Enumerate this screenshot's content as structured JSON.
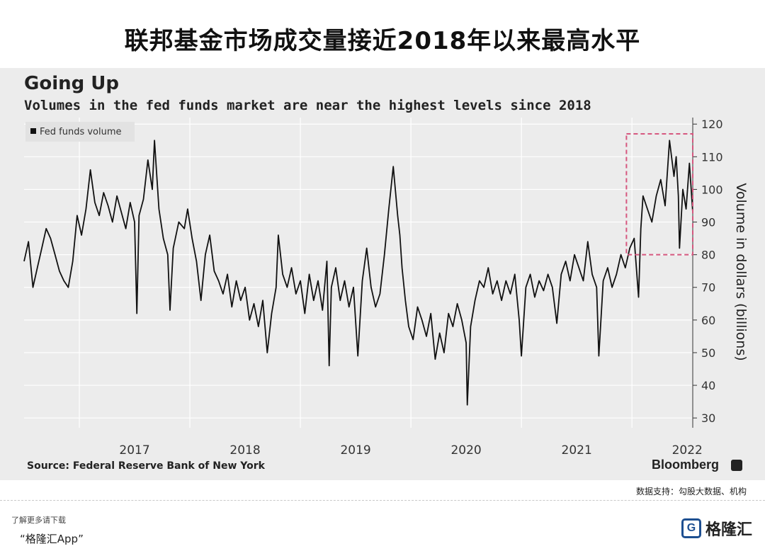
{
  "page": {
    "title": "联邦基金市场成交量接近2018年以来最高水平"
  },
  "chart_meta": {
    "source": "Source: Federal Reserve Bank of New York",
    "brand": "Bloomberg",
    "credit": "数据支持：勾股大数据、机构"
  },
  "footer": {
    "line1": "了解更多请下载",
    "line2": "“格隆汇App”",
    "logo_text": "格隆汇",
    "logo_icon": "G"
  },
  "colors": {
    "line": "#111111",
    "grid": "#ffffff",
    "highlight_box": "#d6577f",
    "panel": "#ececec"
  },
  "chart_data": {
    "type": "line",
    "title": "Going Up",
    "subtitle": "Volumes in the fed funds market are near the highest levels since 2018",
    "xlabel": "",
    "ylabel": "Volume in dollars (billions)",
    "ylim": [
      27,
      122
    ],
    "xlim": [
      2016.5,
      2022.55
    ],
    "y_ticks": [
      30,
      40,
      50,
      60,
      70,
      80,
      90,
      100,
      110,
      120
    ],
    "x_ticks": [
      2017,
      2018,
      2019,
      2020,
      2021,
      2022
    ],
    "x_tick_labels": [
      "2017",
      "2018",
      "2019",
      "2020",
      "2021",
      "2022"
    ],
    "grid": true,
    "legend": {
      "position": "top-left",
      "entries": [
        "Fed funds volume"
      ]
    },
    "highlight_region": {
      "x": [
        2021.95,
        2022.55
      ],
      "y": [
        80,
        117
      ]
    },
    "series": [
      {
        "name": "Fed funds volume",
        "points": [
          [
            2016.5,
            78
          ],
          [
            2016.54,
            84
          ],
          [
            2016.58,
            70
          ],
          [
            2016.62,
            76
          ],
          [
            2016.66,
            82
          ],
          [
            2016.7,
            88
          ],
          [
            2016.74,
            85
          ],
          [
            2016.78,
            80
          ],
          [
            2016.82,
            75
          ],
          [
            2016.86,
            72
          ],
          [
            2016.9,
            70
          ],
          [
            2016.94,
            78
          ],
          [
            2016.98,
            92
          ],
          [
            2017.02,
            86
          ],
          [
            2017.06,
            94
          ],
          [
            2017.1,
            106
          ],
          [
            2017.14,
            96
          ],
          [
            2017.18,
            92
          ],
          [
            2017.22,
            99
          ],
          [
            2017.26,
            95
          ],
          [
            2017.3,
            90
          ],
          [
            2017.34,
            98
          ],
          [
            2017.38,
            93
          ],
          [
            2017.42,
            88
          ],
          [
            2017.46,
            96
          ],
          [
            2017.5,
            90
          ],
          [
            2017.52,
            62
          ],
          [
            2017.54,
            92
          ],
          [
            2017.58,
            97
          ],
          [
            2017.62,
            109
          ],
          [
            2017.66,
            100
          ],
          [
            2017.68,
            115
          ],
          [
            2017.72,
            94
          ],
          [
            2017.76,
            85
          ],
          [
            2017.8,
            80
          ],
          [
            2017.82,
            63
          ],
          [
            2017.85,
            82
          ],
          [
            2017.9,
            90
          ],
          [
            2017.95,
            88
          ],
          [
            2017.98,
            94
          ],
          [
            2018.02,
            85
          ],
          [
            2018.06,
            78
          ],
          [
            2018.1,
            66
          ],
          [
            2018.14,
            80
          ],
          [
            2018.18,
            86
          ],
          [
            2018.22,
            75
          ],
          [
            2018.26,
            72
          ],
          [
            2018.3,
            68
          ],
          [
            2018.34,
            74
          ],
          [
            2018.38,
            64
          ],
          [
            2018.42,
            72
          ],
          [
            2018.46,
            66
          ],
          [
            2018.5,
            70
          ],
          [
            2018.54,
            60
          ],
          [
            2018.58,
            65
          ],
          [
            2018.62,
            58
          ],
          [
            2018.66,
            66
          ],
          [
            2018.7,
            50
          ],
          [
            2018.74,
            62
          ],
          [
            2018.78,
            70
          ],
          [
            2018.8,
            86
          ],
          [
            2018.84,
            74
          ],
          [
            2018.88,
            70
          ],
          [
            2018.92,
            76
          ],
          [
            2018.96,
            68
          ],
          [
            2019.0,
            72
          ],
          [
            2019.04,
            62
          ],
          [
            2019.08,
            74
          ],
          [
            2019.12,
            66
          ],
          [
            2019.16,
            72
          ],
          [
            2019.2,
            63
          ],
          [
            2019.24,
            78
          ],
          [
            2019.26,
            46
          ],
          [
            2019.28,
            70
          ],
          [
            2019.32,
            76
          ],
          [
            2019.36,
            66
          ],
          [
            2019.4,
            72
          ],
          [
            2019.44,
            64
          ],
          [
            2019.48,
            70
          ],
          [
            2019.52,
            49
          ],
          [
            2019.56,
            72
          ],
          [
            2019.6,
            82
          ],
          [
            2019.64,
            70
          ],
          [
            2019.68,
            64
          ],
          [
            2019.72,
            68
          ],
          [
            2019.76,
            80
          ],
          [
            2019.8,
            94
          ],
          [
            2019.84,
            107
          ],
          [
            2019.88,
            92
          ],
          [
            2019.9,
            86
          ],
          [
            2019.92,
            76
          ],
          [
            2019.95,
            66
          ],
          [
            2019.98,
            58
          ],
          [
            2020.02,
            54
          ],
          [
            2020.06,
            64
          ],
          [
            2020.1,
            60
          ],
          [
            2020.14,
            55
          ],
          [
            2020.18,
            62
          ],
          [
            2020.22,
            48
          ],
          [
            2020.26,
            56
          ],
          [
            2020.3,
            50
          ],
          [
            2020.34,
            62
          ],
          [
            2020.38,
            58
          ],
          [
            2020.42,
            65
          ],
          [
            2020.46,
            60
          ],
          [
            2020.5,
            53
          ],
          [
            2020.51,
            34
          ],
          [
            2020.54,
            58
          ],
          [
            2020.58,
            66
          ],
          [
            2020.62,
            72
          ],
          [
            2020.66,
            70
          ],
          [
            2020.7,
            76
          ],
          [
            2020.74,
            68
          ],
          [
            2020.78,
            72
          ],
          [
            2020.82,
            66
          ],
          [
            2020.86,
            72
          ],
          [
            2020.9,
            68
          ],
          [
            2020.94,
            74
          ],
          [
            2020.98,
            60
          ],
          [
            2021.0,
            49
          ],
          [
            2021.04,
            70
          ],
          [
            2021.08,
            74
          ],
          [
            2021.12,
            67
          ],
          [
            2021.16,
            72
          ],
          [
            2021.2,
            69
          ],
          [
            2021.24,
            74
          ],
          [
            2021.28,
            70
          ],
          [
            2021.32,
            59
          ],
          [
            2021.36,
            74
          ],
          [
            2021.4,
            78
          ],
          [
            2021.44,
            72
          ],
          [
            2021.48,
            80
          ],
          [
            2021.52,
            76
          ],
          [
            2021.56,
            72
          ],
          [
            2021.6,
            84
          ],
          [
            2021.64,
            74
          ],
          [
            2021.68,
            70
          ],
          [
            2021.7,
            49
          ],
          [
            2021.74,
            72
          ],
          [
            2021.78,
            76
          ],
          [
            2021.82,
            70
          ],
          [
            2021.86,
            74
          ],
          [
            2021.9,
            80
          ],
          [
            2021.94,
            76
          ],
          [
            2021.98,
            82
          ],
          [
            2022.02,
            85
          ],
          [
            2022.04,
            76
          ],
          [
            2022.06,
            67
          ],
          [
            2022.08,
            88
          ],
          [
            2022.1,
            98
          ],
          [
            2022.14,
            94
          ],
          [
            2022.18,
            90
          ],
          [
            2022.22,
            98
          ],
          [
            2022.26,
            103
          ],
          [
            2022.3,
            95
          ],
          [
            2022.34,
            115
          ],
          [
            2022.38,
            104
          ],
          [
            2022.4,
            110
          ],
          [
            2022.42,
            98
          ],
          [
            2022.43,
            82
          ],
          [
            2022.46,
            100
          ],
          [
            2022.49,
            94
          ],
          [
            2022.52,
            108
          ],
          [
            2022.55,
            93
          ]
        ]
      }
    ]
  }
}
